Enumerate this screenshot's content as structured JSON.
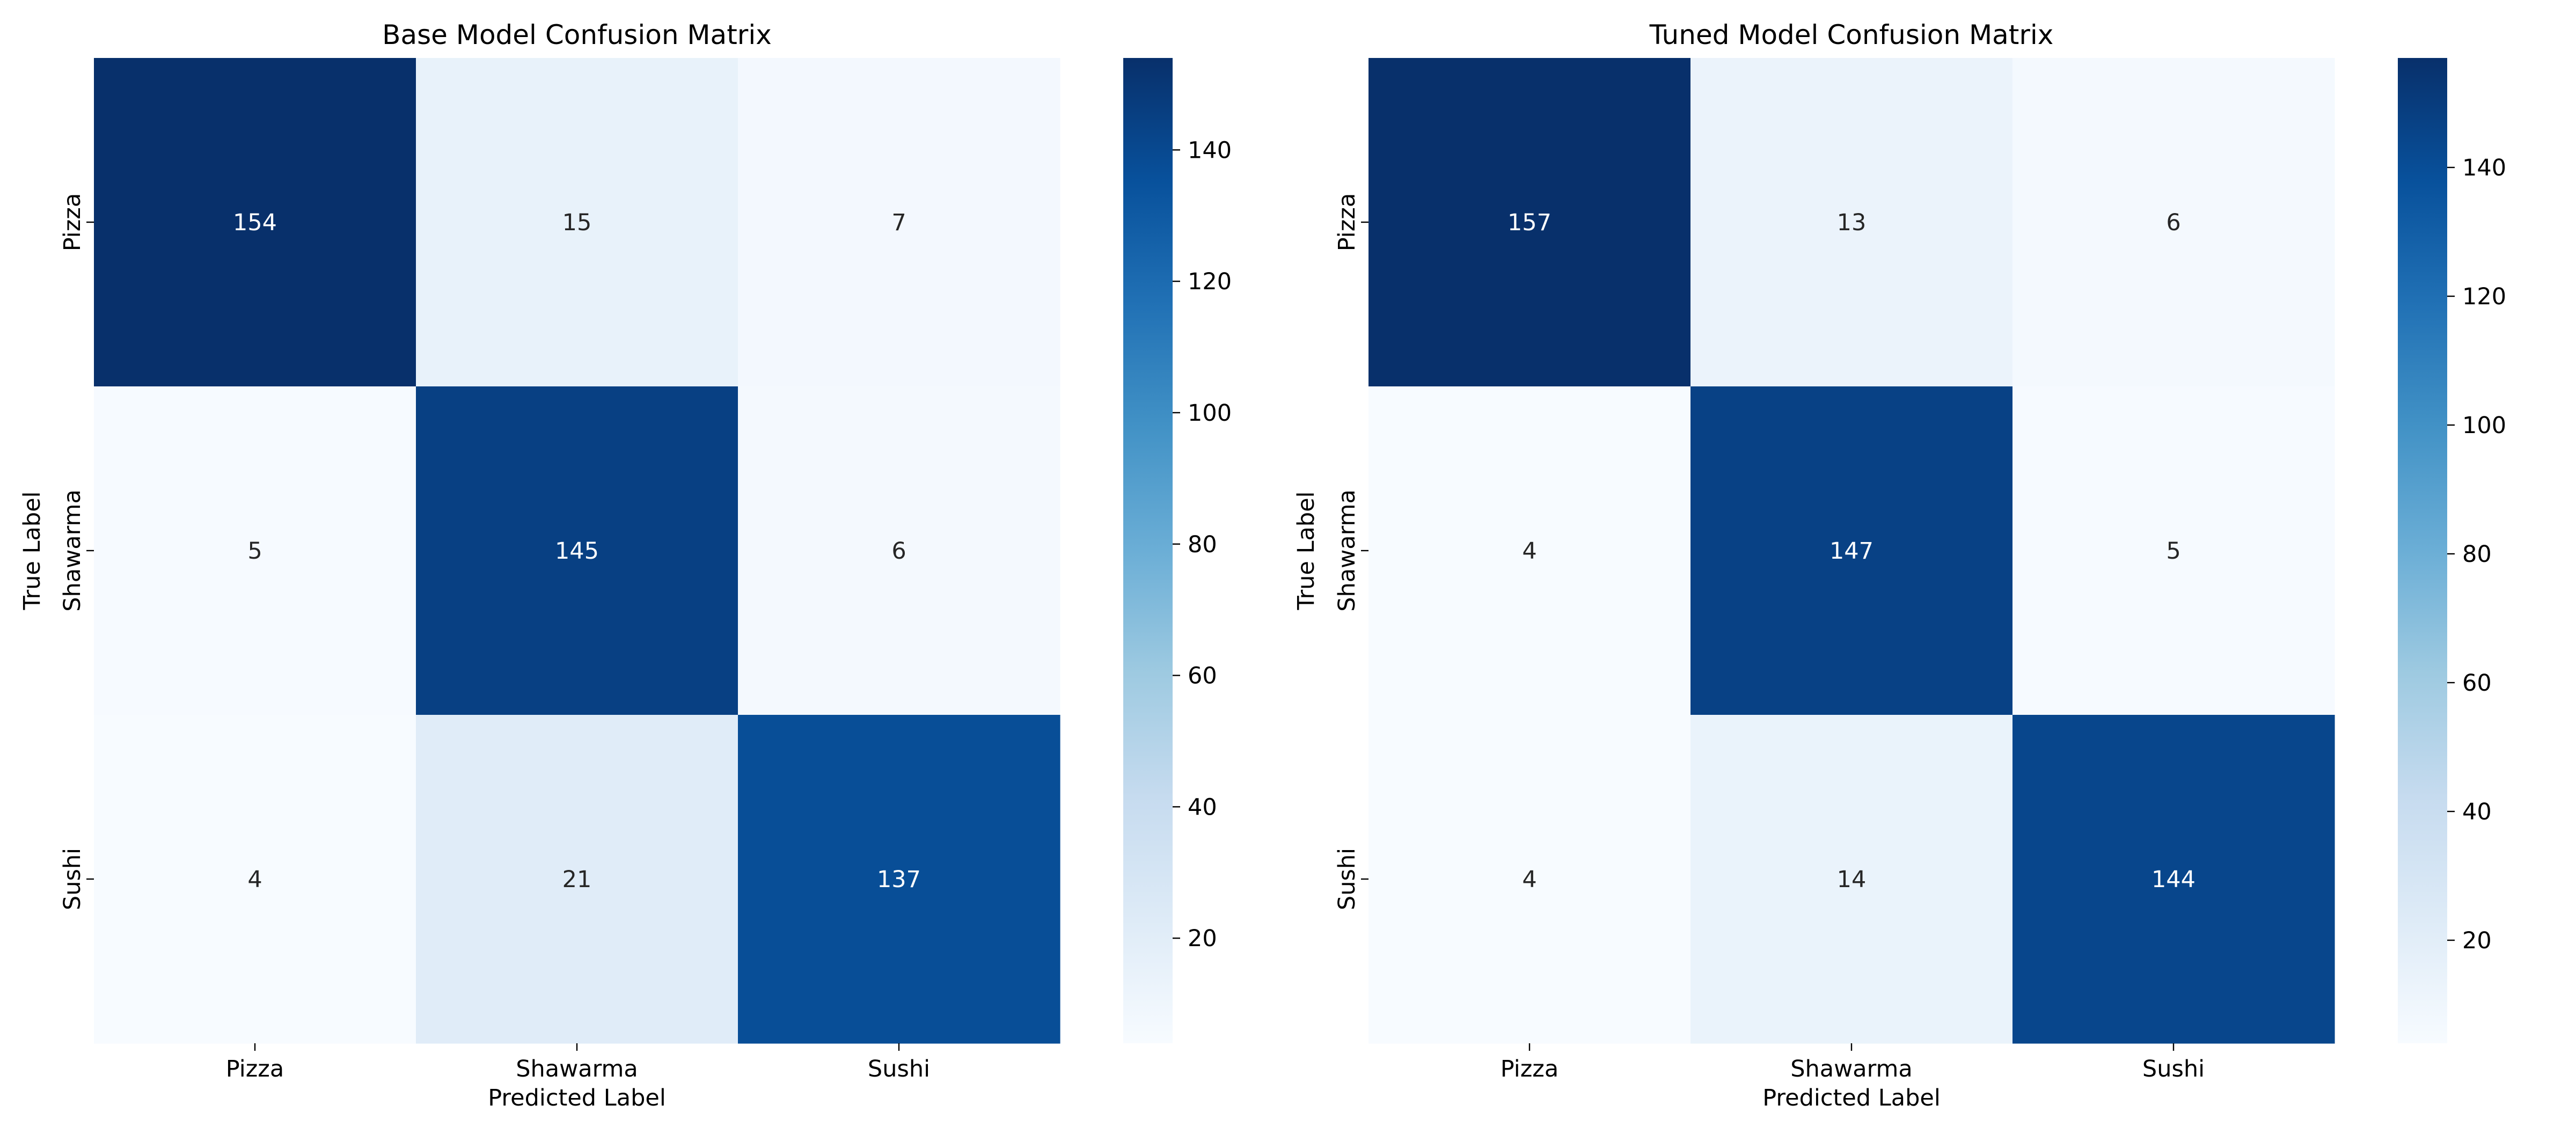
{
  "chart_data": [
    {
      "type": "heatmap",
      "title": "Base Model Confusion Matrix",
      "xlabel": "Predicted Label",
      "ylabel": "True Label",
      "x_categories": [
        "Pizza",
        "Shawarma",
        "Sushi"
      ],
      "y_categories": [
        "Pizza",
        "Shawarma",
        "Sushi"
      ],
      "values": [
        [
          154,
          15,
          7
        ],
        [
          5,
          145,
          6
        ],
        [
          4,
          21,
          137
        ]
      ],
      "value_labels": [
        [
          "154",
          "15",
          "7"
        ],
        [
          "5",
          "145",
          "6"
        ],
        [
          "4",
          "21",
          "137"
        ]
      ],
      "colorbar": {
        "vmin": 4,
        "vmax": 154,
        "ticks": [
          20,
          40,
          60,
          80,
          100,
          120,
          140
        ],
        "tick_labels": [
          "20",
          "40",
          "60",
          "80",
          "100",
          "120",
          "140"
        ]
      },
      "colormap": "Blues"
    },
    {
      "type": "heatmap",
      "title": "Tuned Model Confusion Matrix",
      "xlabel": "Predicted Label",
      "ylabel": "True Label",
      "x_categories": [
        "Pizza",
        "Shawarma",
        "Sushi"
      ],
      "y_categories": [
        "Pizza",
        "Shawarma",
        "Sushi"
      ],
      "values": [
        [
          157,
          13,
          6
        ],
        [
          4,
          147,
          5
        ],
        [
          4,
          14,
          144
        ]
      ],
      "value_labels": [
        [
          "157",
          "13",
          "6"
        ],
        [
          "4",
          "147",
          "5"
        ],
        [
          "4",
          "14",
          "144"
        ]
      ],
      "colorbar": {
        "vmin": 4,
        "vmax": 157,
        "ticks": [
          20,
          40,
          60,
          80,
          100,
          120,
          140
        ],
        "tick_labels": [
          "20",
          "40",
          "60",
          "80",
          "100",
          "120",
          "140"
        ]
      },
      "colormap": "Blues"
    }
  ]
}
